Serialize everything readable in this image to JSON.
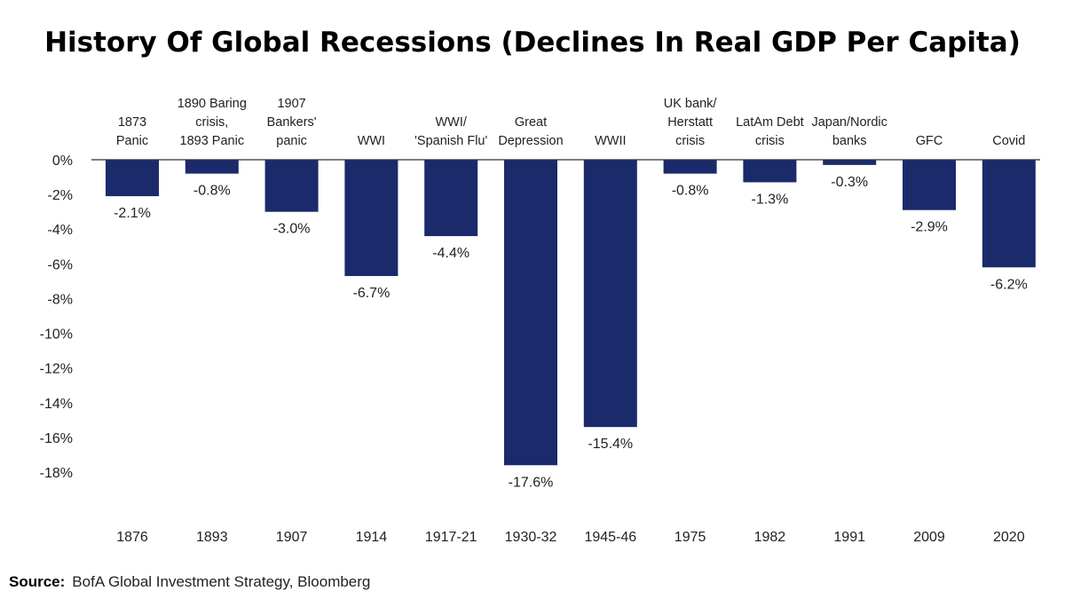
{
  "chart_data": {
    "type": "bar",
    "title": "History Of Global Recessions (Declines In Real GDP Per Capita)",
    "xlabel": "",
    "ylabel": "",
    "ylim": [
      -18,
      0
    ],
    "yticks": [
      "0%",
      "-2%",
      "-4%",
      "-6%",
      "-8%",
      "-10%",
      "-12%",
      "-14%",
      "-16%",
      "-18%"
    ],
    "ytick_values": [
      0,
      -2,
      -4,
      -6,
      -8,
      -10,
      -12,
      -14,
      -16,
      -18
    ],
    "categories": [
      [
        "1873",
        "Panic"
      ],
      [
        "1890 Baring",
        "crisis,",
        "1893 Panic"
      ],
      [
        "1907",
        "Bankers'",
        "panic"
      ],
      [
        "WWI"
      ],
      [
        "WWI/",
        "'Spanish Flu'"
      ],
      [
        "Great",
        "Depression"
      ],
      [
        "WWII"
      ],
      [
        "UK bank/",
        "Herstatt",
        "crisis"
      ],
      [
        "LatAm Debt",
        "crisis"
      ],
      [
        "Japan/Nordic",
        "banks"
      ],
      [
        "GFC"
      ],
      [
        "Covid"
      ]
    ],
    "years": [
      "1876",
      "1893",
      "1907",
      "1914",
      "1917-21",
      "1930-32",
      "1945-46",
      "1975",
      "1982",
      "1991",
      "2009",
      "2020"
    ],
    "values": [
      -2.1,
      -0.8,
      -3.0,
      -6.7,
      -4.4,
      -17.6,
      -15.4,
      -0.8,
      -1.3,
      -0.3,
      -2.9,
      -6.2
    ],
    "value_labels": [
      "-2.1%",
      "-0.8%",
      "-3.0%",
      "-6.7%",
      "-4.4%",
      "-17.6%",
      "-15.4%",
      "-0.8%",
      "-1.3%",
      "-0.3%",
      "-2.9%",
      "-6.2%"
    ],
    "grid": false,
    "legend": "none",
    "bar_color": "#1b2a6b"
  },
  "source": {
    "label": "Source:",
    "text": "BofA Global Investment Strategy, Bloomberg"
  }
}
